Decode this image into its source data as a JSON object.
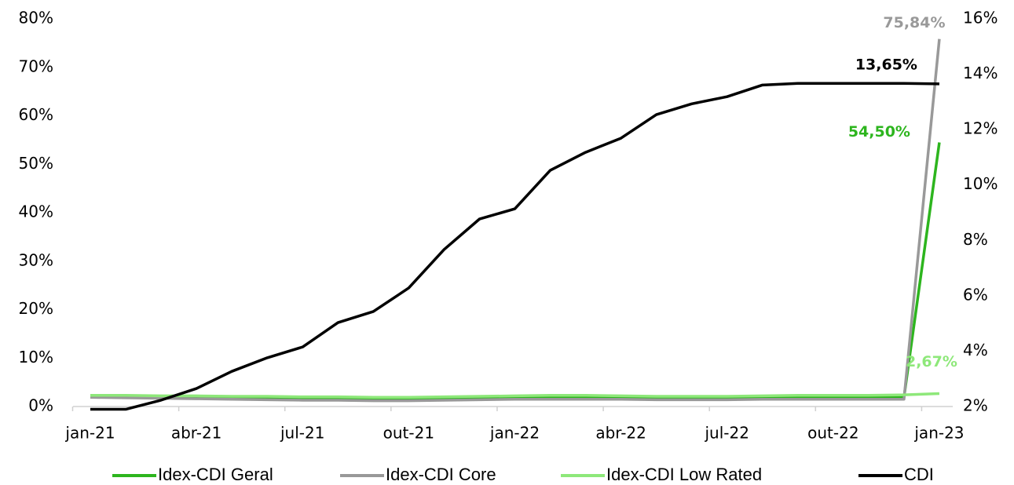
{
  "chart_data": {
    "type": "line",
    "categories": [
      "jan-21",
      null,
      null,
      "abr-21",
      null,
      null,
      "jul-21",
      null,
      null,
      "out-21",
      null,
      null,
      "jan-22",
      null,
      null,
      "abr-22",
      null,
      null,
      "jul-22",
      null,
      null,
      "out-22",
      null,
      null,
      "jan-23"
    ],
    "ylim": [
      0,
      80
    ],
    "yticks": [
      {
        "value": 0,
        "label": "0%"
      },
      {
        "value": 10,
        "label": "10%"
      },
      {
        "value": 20,
        "label": "20%"
      },
      {
        "value": 30,
        "label": "30%"
      },
      {
        "value": 40,
        "label": "40%"
      },
      {
        "value": 50,
        "label": "50%"
      },
      {
        "value": 60,
        "label": "60%"
      },
      {
        "value": 70,
        "label": "70%"
      },
      {
        "value": 80,
        "label": "80%"
      }
    ],
    "y2lim": [
      2,
      16
    ],
    "y2ticks": [
      {
        "value": 2,
        "label": "2%"
      },
      {
        "value": 4,
        "label": "4%"
      },
      {
        "value": 6,
        "label": "6%"
      },
      {
        "value": 8,
        "label": "8%"
      },
      {
        "value": 10,
        "label": "10%"
      },
      {
        "value": 12,
        "label": "12%"
      },
      {
        "value": 14,
        "label": "14%"
      },
      {
        "value": 16,
        "label": "16%"
      }
    ],
    "legend": "bottom",
    "series": [
      {
        "name": "Idex-CDI Geral",
        "color": "#2db51e",
        "axis": "y",
        "values": [
          2.0,
          2.0,
          1.9,
          1.9,
          1.8,
          1.8,
          1.7,
          1.7,
          1.6,
          1.6,
          1.7,
          1.8,
          1.9,
          1.9,
          1.9,
          1.9,
          1.8,
          1.8,
          1.8,
          1.9,
          1.9,
          1.9,
          1.9,
          1.9,
          54.5
        ],
        "value_labels": [
          null,
          null,
          null,
          null,
          null,
          null,
          null,
          null,
          null,
          null,
          null,
          null,
          null,
          null,
          null,
          null,
          null,
          null,
          null,
          null,
          null,
          null,
          null,
          null,
          "54,50%"
        ]
      },
      {
        "name": "Idex-CDI Core",
        "color": "#999999",
        "axis": "y",
        "values": [
          1.9,
          1.8,
          1.7,
          1.6,
          1.5,
          1.4,
          1.3,
          1.3,
          1.2,
          1.2,
          1.3,
          1.4,
          1.5,
          1.5,
          1.5,
          1.5,
          1.4,
          1.4,
          1.4,
          1.5,
          1.5,
          1.5,
          1.5,
          1.5,
          75.84
        ],
        "value_labels": [
          null,
          null,
          null,
          null,
          null,
          null,
          null,
          null,
          null,
          null,
          null,
          null,
          null,
          null,
          null,
          null,
          null,
          null,
          null,
          null,
          null,
          null,
          null,
          null,
          "75,84%"
        ]
      },
      {
        "name": "Idex-CDI Low Rated",
        "color": "#8ee87a",
        "axis": "y",
        "values": [
          2.3,
          2.3,
          2.2,
          2.2,
          2.1,
          2.1,
          2.0,
          2.0,
          1.9,
          1.9,
          2.0,
          2.1,
          2.2,
          2.3,
          2.3,
          2.2,
          2.1,
          2.1,
          2.1,
          2.2,
          2.3,
          2.3,
          2.3,
          2.4,
          2.67
        ],
        "value_labels": [
          null,
          null,
          null,
          null,
          null,
          null,
          null,
          null,
          null,
          null,
          null,
          null,
          null,
          null,
          null,
          null,
          null,
          null,
          null,
          null,
          null,
          null,
          null,
          null,
          "2,67%"
        ]
      },
      {
        "name": "CDI",
        "color": "#000000",
        "axis": "y2",
        "values": [
          1.9,
          1.9,
          2.23,
          2.65,
          3.27,
          3.76,
          4.15,
          5.03,
          5.43,
          6.28,
          7.67,
          8.77,
          9.14,
          10.53,
          11.18,
          11.69,
          12.54,
          12.93,
          13.19,
          13.61,
          13.67,
          13.67,
          13.67,
          13.67,
          13.65
        ],
        "value_labels": [
          null,
          null,
          null,
          null,
          null,
          null,
          null,
          null,
          null,
          null,
          null,
          null,
          null,
          null,
          null,
          null,
          null,
          null,
          null,
          null,
          null,
          null,
          null,
          null,
          "13,65%"
        ]
      }
    ]
  }
}
